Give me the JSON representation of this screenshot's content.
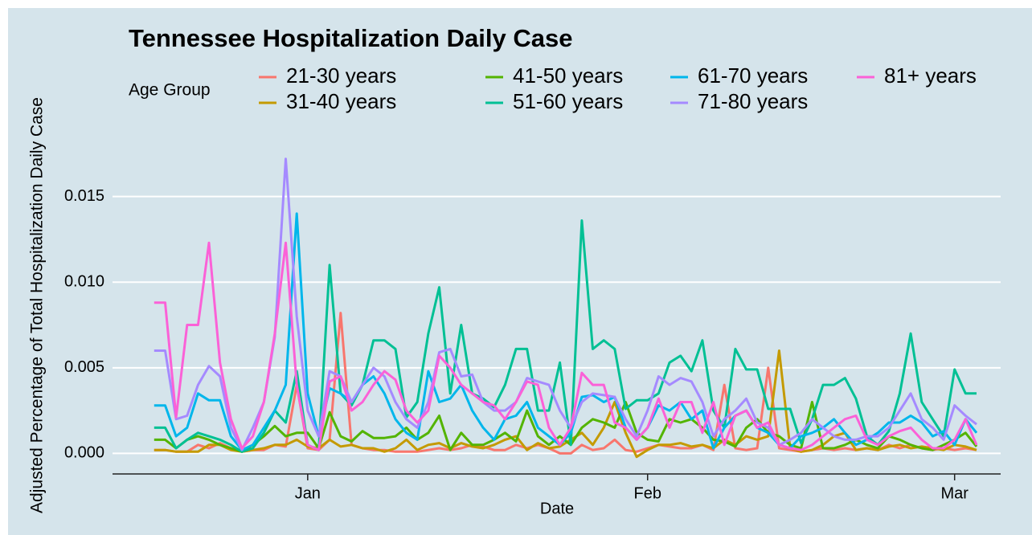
{
  "chart_data": {
    "type": "line",
    "title": "Tennessee Hospitalization Daily Case",
    "x_label": "Date",
    "y_label": "Adjusted Percentage of Total  Hospitalization Daily Case",
    "legend_title": "Age Group",
    "grid": true,
    "legend": "top",
    "xlim": [
      -17.8,
      63.2
    ],
    "xticks": [
      {
        "value": 0,
        "label": "Jan"
      },
      {
        "value": 31,
        "label": "Feb"
      },
      {
        "value": 59,
        "label": "Mar"
      }
    ],
    "ylim": [
      -0.0012,
      0.0185
    ],
    "yticks": [
      {
        "value": 0,
        "label": "0.000"
      },
      0.005,
      {
        "value": 0.01,
        "label": "0.010"
      },
      0.015
    ],
    "x": [
      -14,
      -13,
      -12,
      -11,
      -10,
      -9,
      -8,
      -7,
      -6,
      -5,
      -4,
      -3,
      -2,
      -1,
      0,
      1,
      2,
      3,
      4,
      5,
      6,
      7,
      8,
      9,
      10,
      11,
      12,
      13,
      14,
      15,
      16,
      17,
      18,
      19,
      20,
      21,
      22,
      23,
      24,
      25,
      26,
      27,
      28,
      29,
      30,
      31,
      32,
      33,
      34,
      35,
      36,
      37,
      38,
      39,
      40,
      41,
      42,
      43,
      44,
      45,
      46,
      47,
      48,
      49,
      50,
      51,
      52,
      53,
      54,
      55,
      56,
      57,
      58,
      59,
      60,
      61
    ],
    "series": [
      {
        "name": "21-30 years",
        "color": "#F8766D",
        "values": [
          0.0002,
          0.0002,
          0.0001,
          0.0001,
          0.0005,
          0.0003,
          0.0006,
          0.0003,
          0.0001,
          0.0002,
          0.0002,
          0.0005,
          0.0004,
          0.004,
          0.0003,
          0.0002,
          0.0008,
          0.0082,
          0.0005,
          0.0003,
          0.0002,
          0.0002,
          0.0001,
          0.0001,
          0.0001,
          0.0002,
          0.0003,
          0.0002,
          0.0003,
          0.0005,
          0.0004,
          0.0002,
          0.0002,
          0.0005,
          0.0003,
          0.0005,
          0.0003,
          0.0,
          0.0,
          0.0005,
          0.0002,
          0.0003,
          0.0008,
          0.0002,
          0.0001,
          0.0003,
          0.0005,
          0.0004,
          0.0003,
          0.0003,
          0.0005,
          0.0002,
          0.004,
          0.0003,
          0.0002,
          0.0003,
          0.005,
          0.0003,
          0.0002,
          0.0001,
          0.0002,
          0.0003,
          0.0002,
          0.0003,
          0.0002,
          0.0003,
          0.0002,
          0.0005,
          0.0003,
          0.0005,
          0.0003,
          0.0002,
          0.0003,
          0.0002,
          0.0003,
          0.0002
        ]
      },
      {
        "name": "31-40 years",
        "color": "#C49A00",
        "values": [
          0.0002,
          0.0002,
          0.0001,
          0.0001,
          0.0001,
          0.0005,
          0.0005,
          0.0002,
          0.0001,
          0.0002,
          0.0003,
          0.0005,
          0.0005,
          0.0008,
          0.0004,
          0.0003,
          0.0008,
          0.0004,
          0.0005,
          0.0003,
          0.0003,
          0.0001,
          0.0003,
          0.0008,
          0.0002,
          0.0005,
          0.0006,
          0.0003,
          0.0006,
          0.0004,
          0.0003,
          0.0005,
          0.0008,
          0.001,
          0.0002,
          0.0006,
          0.0003,
          0.0004,
          0.0008,
          0.0012,
          0.0005,
          0.0015,
          0.003,
          0.0012,
          -0.0002,
          0.0002,
          0.0005,
          0.0005,
          0.0006,
          0.0004,
          0.0005,
          0.0003,
          0.0008,
          0.0005,
          0.001,
          0.0008,
          0.001,
          0.006,
          0.0003,
          0.0001,
          0.0002,
          0.0005,
          0.001,
          0.0012,
          0.0002,
          0.0003,
          0.0002,
          0.0004,
          0.0005,
          0.0003,
          0.0004,
          0.0003,
          0.0002,
          0.0005,
          0.0004,
          0.0002
        ]
      },
      {
        "name": "41-50 years",
        "color": "#53B400",
        "values": [
          0.0008,
          0.0008,
          0.0003,
          0.0008,
          0.001,
          0.0008,
          0.0005,
          0.0003,
          0.0001,
          0.0005,
          0.001,
          0.0016,
          0.001,
          0.0012,
          0.0012,
          0.0003,
          0.0024,
          0.001,
          0.0007,
          0.0013,
          0.0009,
          0.0009,
          0.001,
          0.0015,
          0.0008,
          0.0012,
          0.0022,
          0.0002,
          0.0012,
          0.0005,
          0.0005,
          0.0008,
          0.0012,
          0.0007,
          0.0025,
          0.001,
          0.0005,
          0.001,
          0.0005,
          0.0015,
          0.002,
          0.0018,
          0.0015,
          0.003,
          0.0012,
          0.0008,
          0.0007,
          0.002,
          0.0018,
          0.002,
          0.0015,
          0.0008,
          0.0007,
          0.0004,
          0.0015,
          0.002,
          0.0012,
          0.001,
          0.0005,
          0.0003,
          0.003,
          0.0003,
          0.0003,
          0.0005,
          0.0008,
          0.0005,
          0.0003,
          0.001,
          0.0008,
          0.0005,
          0.0003,
          0.0002,
          0.0005,
          0.0008,
          0.0012,
          0.0004
        ]
      },
      {
        "name": "51-60 years",
        "color": "#00C094",
        "values": [
          0.0015,
          0.0015,
          0.0003,
          0.0008,
          0.0012,
          0.001,
          0.0008,
          0.0005,
          0.0001,
          0.0003,
          0.0012,
          0.0025,
          0.0018,
          0.0048,
          0.0005,
          0.0002,
          0.011,
          0.0035,
          0.0028,
          0.004,
          0.0066,
          0.0066,
          0.0061,
          0.0021,
          0.003,
          0.007,
          0.0097,
          0.0035,
          0.0075,
          0.0035,
          0.0032,
          0.0027,
          0.004,
          0.0061,
          0.0061,
          0.0025,
          0.0025,
          0.0053,
          0.0005,
          0.0136,
          0.0061,
          0.0066,
          0.0061,
          0.0026,
          0.0031,
          0.0031,
          0.0035,
          0.0053,
          0.0057,
          0.0048,
          0.0066,
          0.0025,
          0.0015,
          0.0061,
          0.0049,
          0.0049,
          0.0026,
          0.0026,
          0.0026,
          0.0006,
          0.002,
          0.004,
          0.004,
          0.0044,
          0.0032,
          0.001,
          0.0005,
          0.0013,
          0.0035,
          0.007,
          0.003,
          0.002,
          0.001,
          0.0049,
          0.0035,
          0.0035
        ]
      },
      {
        "name": "61-70 years",
        "color": "#00B6EB",
        "values": [
          0.0028,
          0.0028,
          0.001,
          0.0015,
          0.0035,
          0.0031,
          0.0031,
          0.001,
          0.0002,
          0.0005,
          0.0015,
          0.0025,
          0.004,
          0.014,
          0.0035,
          0.001,
          0.0038,
          0.0035,
          0.003,
          0.004,
          0.0045,
          0.0035,
          0.002,
          0.0012,
          0.0008,
          0.0048,
          0.003,
          0.0032,
          0.004,
          0.0025,
          0.0015,
          0.0008,
          0.002,
          0.0022,
          0.003,
          0.0015,
          0.001,
          0.0005,
          0.0012,
          0.0033,
          0.0034,
          0.003,
          0.0033,
          0.0015,
          0.0008,
          0.0015,
          0.0028,
          0.0025,
          0.003,
          0.002,
          0.0025,
          0.0003,
          0.0015,
          0.0022,
          0.0025,
          0.0015,
          0.0012,
          0.0005,
          0.0003,
          0.001,
          0.0012,
          0.0015,
          0.002,
          0.0012,
          0.0005,
          0.0008,
          0.0012,
          0.0018,
          0.0018,
          0.0022,
          0.0018,
          0.001,
          0.0013,
          0.0005,
          0.002,
          0.0012
        ]
      },
      {
        "name": "71-80 years",
        "color": "#A58AFF",
        "values": [
          0.006,
          0.006,
          0.002,
          0.0022,
          0.004,
          0.0051,
          0.0045,
          0.0015,
          0.0002,
          0.0015,
          0.003,
          0.0068,
          0.0172,
          0.008,
          0.0025,
          0.001,
          0.0048,
          0.0045,
          0.003,
          0.004,
          0.005,
          0.0045,
          0.003,
          0.002,
          0.0015,
          0.003,
          0.0059,
          0.0061,
          0.0045,
          0.0046,
          0.003,
          0.0025,
          0.0025,
          0.003,
          0.0044,
          0.0042,
          0.004,
          0.0025,
          0.0015,
          0.003,
          0.0035,
          0.0034,
          0.0033,
          0.002,
          0.001,
          0.0025,
          0.0045,
          0.004,
          0.0044,
          0.0042,
          0.003,
          0.001,
          0.002,
          0.0025,
          0.0032,
          0.0018,
          0.0015,
          0.0005,
          0.0008,
          0.0012,
          0.002,
          0.0015,
          0.001,
          0.0008,
          0.0008,
          0.001,
          0.001,
          0.0015,
          0.0025,
          0.0035,
          0.002,
          0.0015,
          0.0008,
          0.0028,
          0.0022,
          0.0017
        ]
      },
      {
        "name": "81+ years",
        "color": "#FB61D7",
        "values": [
          0.0088,
          0.0088,
          0.0021,
          0.0075,
          0.0075,
          0.0123,
          0.0053,
          0.002,
          0.0003,
          0.001,
          0.003,
          0.007,
          0.0123,
          0.004,
          0.0005,
          0.0002,
          0.0042,
          0.0045,
          0.0025,
          0.003,
          0.004,
          0.0048,
          0.0043,
          0.0025,
          0.0018,
          0.0025,
          0.0057,
          0.005,
          0.004,
          0.0035,
          0.003,
          0.0028,
          0.002,
          0.003,
          0.0042,
          0.004,
          0.0015,
          0.0005,
          0.0015,
          0.0047,
          0.004,
          0.004,
          0.0018,
          0.0015,
          0.0008,
          0.0015,
          0.0032,
          0.0015,
          0.003,
          0.003,
          0.0012,
          0.003,
          0.0005,
          0.0022,
          0.0025,
          0.0015,
          0.0018,
          0.0005,
          0.0003,
          0.0002,
          0.0005,
          0.001,
          0.0015,
          0.002,
          0.0022,
          0.0008,
          0.0005,
          0.001,
          0.0013,
          0.0015,
          0.0008,
          0.0003,
          0.0003,
          0.0008,
          0.002,
          0.0005
        ]
      }
    ]
  }
}
